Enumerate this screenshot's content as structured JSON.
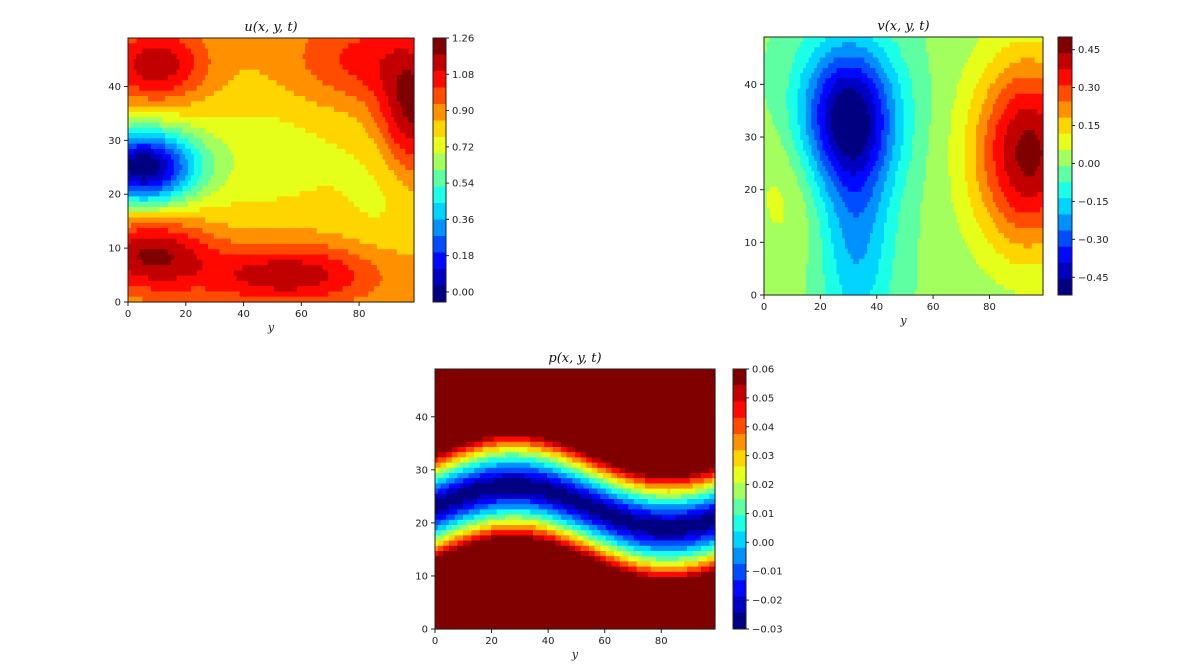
{
  "chart_data": [
    {
      "type": "heatmap",
      "title": "u(x, y, t)",
      "xlabel": "y",
      "xlim": [
        0,
        99
      ],
      "ylim": [
        0,
        49
      ],
      "xticks": [
        "0",
        "20",
        "40",
        "60",
        "80"
      ],
      "yticks": [
        "0",
        "10",
        "20",
        "30",
        "40"
      ],
      "colorbar": {
        "ticks": [
          "0.00",
          "0.18",
          "0.36",
          "0.54",
          "0.72",
          "0.90",
          "1.08",
          "1.26"
        ],
        "range": [
          -0.05,
          1.26
        ]
      },
      "colormap": "jet",
      "field": {
        "base": 0.84,
        "features": [
          {
            "x": 5,
            "y": 25,
            "amplitude": -0.85,
            "sx": 13,
            "sy": 5
          },
          {
            "x": 10,
            "y": 44,
            "amplitude": 0.32,
            "sx": 12,
            "sy": 5
          },
          {
            "x": 8,
            "y": 9,
            "amplitude": 0.35,
            "sx": 14,
            "sy": 5
          },
          {
            "x": 55,
            "y": 5,
            "amplitude": 0.32,
            "sx": 22,
            "sy": 4
          },
          {
            "x": 98,
            "y": 35,
            "amplitude": 0.34,
            "sx": 8,
            "sy": 8
          },
          {
            "x": 82,
            "y": 45,
            "amplitude": 0.2,
            "sx": 18,
            "sy": 6
          },
          {
            "x": 45,
            "y": 27,
            "amplitude": -0.12,
            "sx": 25,
            "sy": 8
          },
          {
            "x": 88,
            "y": 20,
            "amplitude": -0.08,
            "sx": 10,
            "sy": 8
          }
        ]
      }
    },
    {
      "type": "heatmap",
      "title": "v(x, y, t)",
      "xlabel": "y",
      "xlim": [
        0,
        99
      ],
      "ylim": [
        0,
        49
      ],
      "xticks": [
        "0",
        "20",
        "40",
        "60",
        "80"
      ],
      "yticks": [
        "0",
        "10",
        "20",
        "30",
        "40"
      ],
      "colorbar": {
        "ticks": [
          "−0.45",
          "−0.30",
          "−0.15",
          "0.00",
          "0.15",
          "0.30",
          "0.45"
        ],
        "range": [
          -0.52,
          0.5
        ]
      },
      "colormap": "jet",
      "field": {
        "base": 0.0,
        "features": [
          {
            "x": 30,
            "y": 34,
            "amplitude": -0.5,
            "sx": 12,
            "sy": 10
          },
          {
            "x": 33,
            "y": 10,
            "amplitude": -0.2,
            "sx": 9,
            "sy": 14
          },
          {
            "x": 94,
            "y": 27,
            "amplitude": 0.46,
            "sx": 14,
            "sy": 13
          },
          {
            "x": 8,
            "y": 20,
            "amplitude": 0.08,
            "sx": 10,
            "sy": 10
          }
        ]
      }
    },
    {
      "type": "heatmap",
      "title": "p(x, y, t)",
      "xlabel": "y",
      "xlim": [
        0,
        99
      ],
      "ylim": [
        0,
        49
      ],
      "xticks": [
        "0",
        "20",
        "40",
        "60",
        "80"
      ],
      "yticks": [
        "0",
        "10",
        "20",
        "30",
        "40"
      ],
      "colorbar": {
        "ticks": [
          "−0.03",
          "−0.02",
          "−0.01",
          "0.00",
          "0.01",
          "0.02",
          "0.03",
          "0.04",
          "0.05",
          "0.06"
        ],
        "range": [
          -0.03,
          0.06
        ]
      },
      "colormap": "jet",
      "field": {
        "wave": {
          "center": 23,
          "amplitude": 4,
          "half_width": 10,
          "min": -0.03,
          "max": 0.06
        }
      }
    }
  ]
}
